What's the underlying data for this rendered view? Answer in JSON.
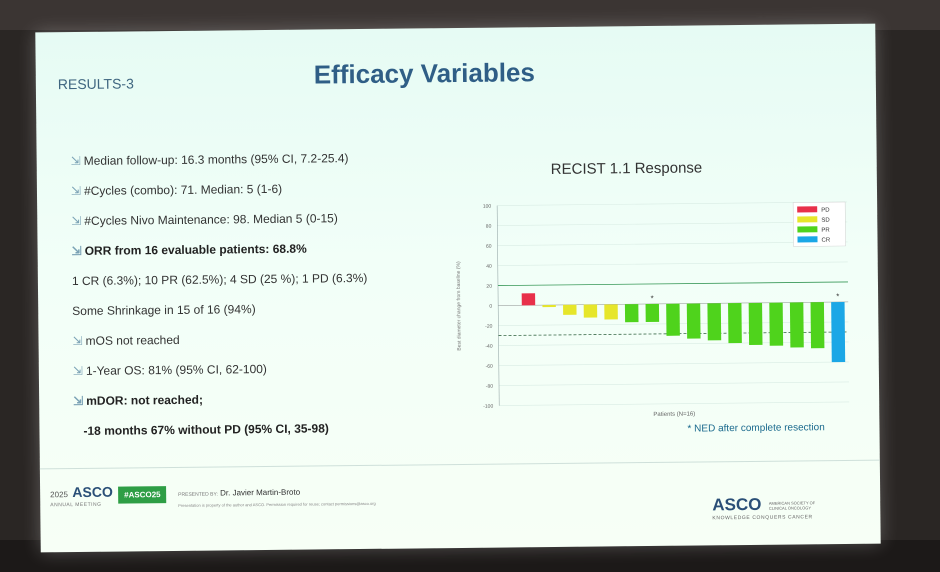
{
  "slide": {
    "section": "RESULTS-3",
    "title": "Efficacy Variables",
    "bullets": [
      {
        "text": "Median follow-up: 16.3 months (95% CI, 7.2-25.4)",
        "arrow": true,
        "bold": false,
        "indent": 0
      },
      {
        "text": "#Cycles (combo): 71. Median: 5 (1-6)",
        "arrow": true,
        "bold": false,
        "indent": 0
      },
      {
        "text": "#Cycles Nivo Maintenance: 98. Median 5 (0-15)",
        "arrow": true,
        "bold": false,
        "indent": 0
      },
      {
        "text": "ORR from 16 evaluable patients: 68.8%",
        "arrow": true,
        "bold": true,
        "indent": 0
      },
      {
        "text": "1 CR (6.3%); 10 PR (62.5%); 4 SD (25 %); 1 PD (6.3%)",
        "arrow": false,
        "bold": false,
        "indent": 0
      },
      {
        "text": "Some Shrinkage in 15 of 16 (94%)",
        "arrow": false,
        "bold": false,
        "indent": 0
      },
      {
        "text": "mOS not reached",
        "arrow": true,
        "bold": false,
        "indent": 0
      },
      {
        "text": "1-Year OS: 81% (95% CI, 62-100)",
        "arrow": true,
        "bold": false,
        "indent": 0
      },
      {
        "text": "mDOR: not reached;",
        "arrow": true,
        "bold": true,
        "indent": 0
      },
      {
        "text": "-18 months 67% without PD (95% CI, 35-98)",
        "arrow": false,
        "bold": true,
        "indent": 1
      }
    ],
    "chart_title": "RECIST 1.1 Response",
    "footnote": "* NED after complete resection",
    "footer": {
      "asco_year": "2025",
      "asco_word": "ASCO",
      "asco_sub": "ANNUAL MEETING",
      "hashtag": "#ASCO25",
      "presented_by_label": "PRESENTED BY:",
      "presenter": "Dr. Javier Martin-Broto",
      "fine_print": "Presentation is property of the author and ASCO. Permission required for reuse; contact permissions@asco.org",
      "asco_right_word": "ASCO",
      "asco_right_small": "AMERICAN SOCIETY OF CLINICAL ONCOLOGY",
      "asco_right_tag": "KNOWLEDGE CONQUERS CANCER"
    }
  },
  "chart_data": {
    "type": "bar",
    "title": "RECIST 1.1 Response",
    "xlabel": "Patients (N=16)",
    "ylabel": "Best diameter change from baseline (%)",
    "ylim": [
      -100,
      100
    ],
    "yticks": [
      100,
      80,
      60,
      40,
      20,
      0,
      -20,
      -40,
      -60,
      -80,
      -100
    ],
    "reference_lines": [
      20,
      -30
    ],
    "values": [
      12,
      -2,
      -10,
      -13,
      -15,
      -18,
      -18,
      -32,
      -35,
      -37,
      -40,
      -42,
      -43,
      -45,
      -46,
      -60
    ],
    "categories_response": [
      "PD",
      "SD",
      "SD",
      "SD",
      "SD",
      "PR",
      "PR",
      "PR",
      "PR",
      "PR",
      "PR",
      "PR",
      "PR",
      "PR",
      "PR",
      "CR"
    ],
    "ned_marked": [
      6,
      15
    ],
    "legend": [
      {
        "label": "PD",
        "color": "#e8304a"
      },
      {
        "label": "SD",
        "color": "#e6e62a"
      },
      {
        "label": "PR",
        "color": "#4fd31c"
      },
      {
        "label": "CR",
        "color": "#1ba7e6"
      }
    ],
    "legend_position": "top-right",
    "grid": true
  }
}
